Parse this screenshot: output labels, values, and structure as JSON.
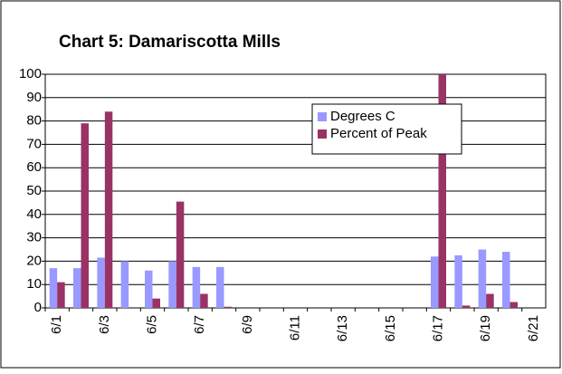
{
  "chart_data": {
    "type": "bar",
    "title": "Chart 5:  Damariscotta Mills",
    "categories": [
      "6/1",
      null,
      "6/3",
      null,
      "6/5",
      null,
      "6/7",
      null,
      "6/9",
      null,
      "6/11",
      null,
      "6/13",
      null,
      "6/15",
      null,
      "6/17",
      null,
      "6/19",
      null,
      "6/21"
    ],
    "series": [
      {
        "name": "Degrees C",
        "color": "#9999ff",
        "values": [
          17,
          17,
          21.5,
          20,
          16,
          20,
          17.5,
          17.5,
          null,
          null,
          null,
          null,
          null,
          null,
          null,
          null,
          22,
          22.5,
          25,
          24,
          null
        ]
      },
      {
        "name": "Percent of Peak",
        "color": "#993366",
        "values": [
          11,
          79,
          84,
          null,
          4,
          45.5,
          6,
          0.5,
          null,
          null,
          null,
          null,
          null,
          null,
          null,
          null,
          100,
          1,
          6,
          2.5,
          null
        ]
      }
    ],
    "ylim": [
      0,
      100
    ],
    "yticks": [
      0,
      10,
      20,
      30,
      40,
      50,
      60,
      70,
      80,
      90,
      100
    ],
    "grid": true,
    "legend": "upper-right"
  }
}
